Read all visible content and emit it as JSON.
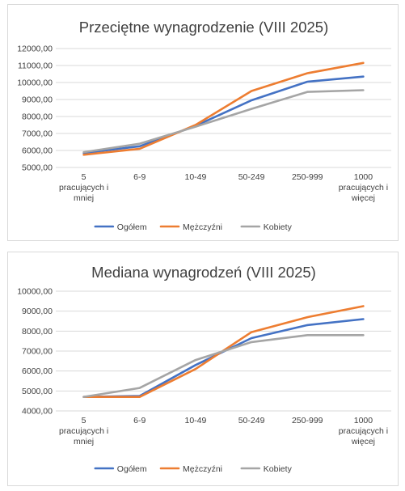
{
  "chart_data": [
    {
      "type": "line",
      "title": "Przeciętne wynagrodzenie (VIII 2025)",
      "categories": [
        [
          "5",
          "pracujących i",
          "mniej"
        ],
        [
          "6-9"
        ],
        [
          "10-49"
        ],
        [
          "50-249"
        ],
        [
          "250-999"
        ],
        [
          "1000",
          "pracujących i",
          "więcej"
        ]
      ],
      "y_ticks": [
        "5000,00",
        "6000,00",
        "7000,00",
        "8000,00",
        "9000,00",
        "10000,00",
        "11000,00",
        "12000,00"
      ],
      "ylim": [
        5000,
        12000
      ],
      "grid": true,
      "legend_position": "bottom",
      "series": [
        {
          "name": "Ogółem",
          "color": "#4472c4",
          "values": [
            5850,
            6250,
            7450,
            8950,
            10050,
            10350
          ]
        },
        {
          "name": "Mężczyźni",
          "color": "#ed7d31",
          "values": [
            5750,
            6100,
            7500,
            9500,
            10550,
            11150
          ]
        },
        {
          "name": "Kobiety",
          "color": "#a5a5a5",
          "values": [
            5900,
            6400,
            7400,
            8450,
            9450,
            9550
          ]
        }
      ]
    },
    {
      "type": "line",
      "title": "Mediana wynagrodzeń (VIII 2025)",
      "categories": [
        [
          "5",
          "pracujących i",
          "mniej"
        ],
        [
          "6-9"
        ],
        [
          "10-49"
        ],
        [
          "50-249"
        ],
        [
          "250-999"
        ],
        [
          "1000",
          "pracujących i",
          "więcej"
        ]
      ],
      "y_ticks": [
        "4000,00",
        "5000,00",
        "6000,00",
        "7000,00",
        "8000,00",
        "9000,00",
        "10000,00"
      ],
      "ylim": [
        4000,
        10000
      ],
      "grid": true,
      "legend_position": "bottom",
      "series": [
        {
          "name": "Ogółem",
          "color": "#4472c4",
          "values": [
            4700,
            4750,
            6300,
            7650,
            8300,
            8600
          ]
        },
        {
          "name": "Mężczyźni",
          "color": "#ed7d31",
          "values": [
            4700,
            4700,
            6100,
            7950,
            8700,
            9250
          ]
        },
        {
          "name": "Kobiety",
          "color": "#a5a5a5",
          "values": [
            4700,
            5150,
            6550,
            7450,
            7800,
            7800
          ]
        }
      ]
    }
  ]
}
